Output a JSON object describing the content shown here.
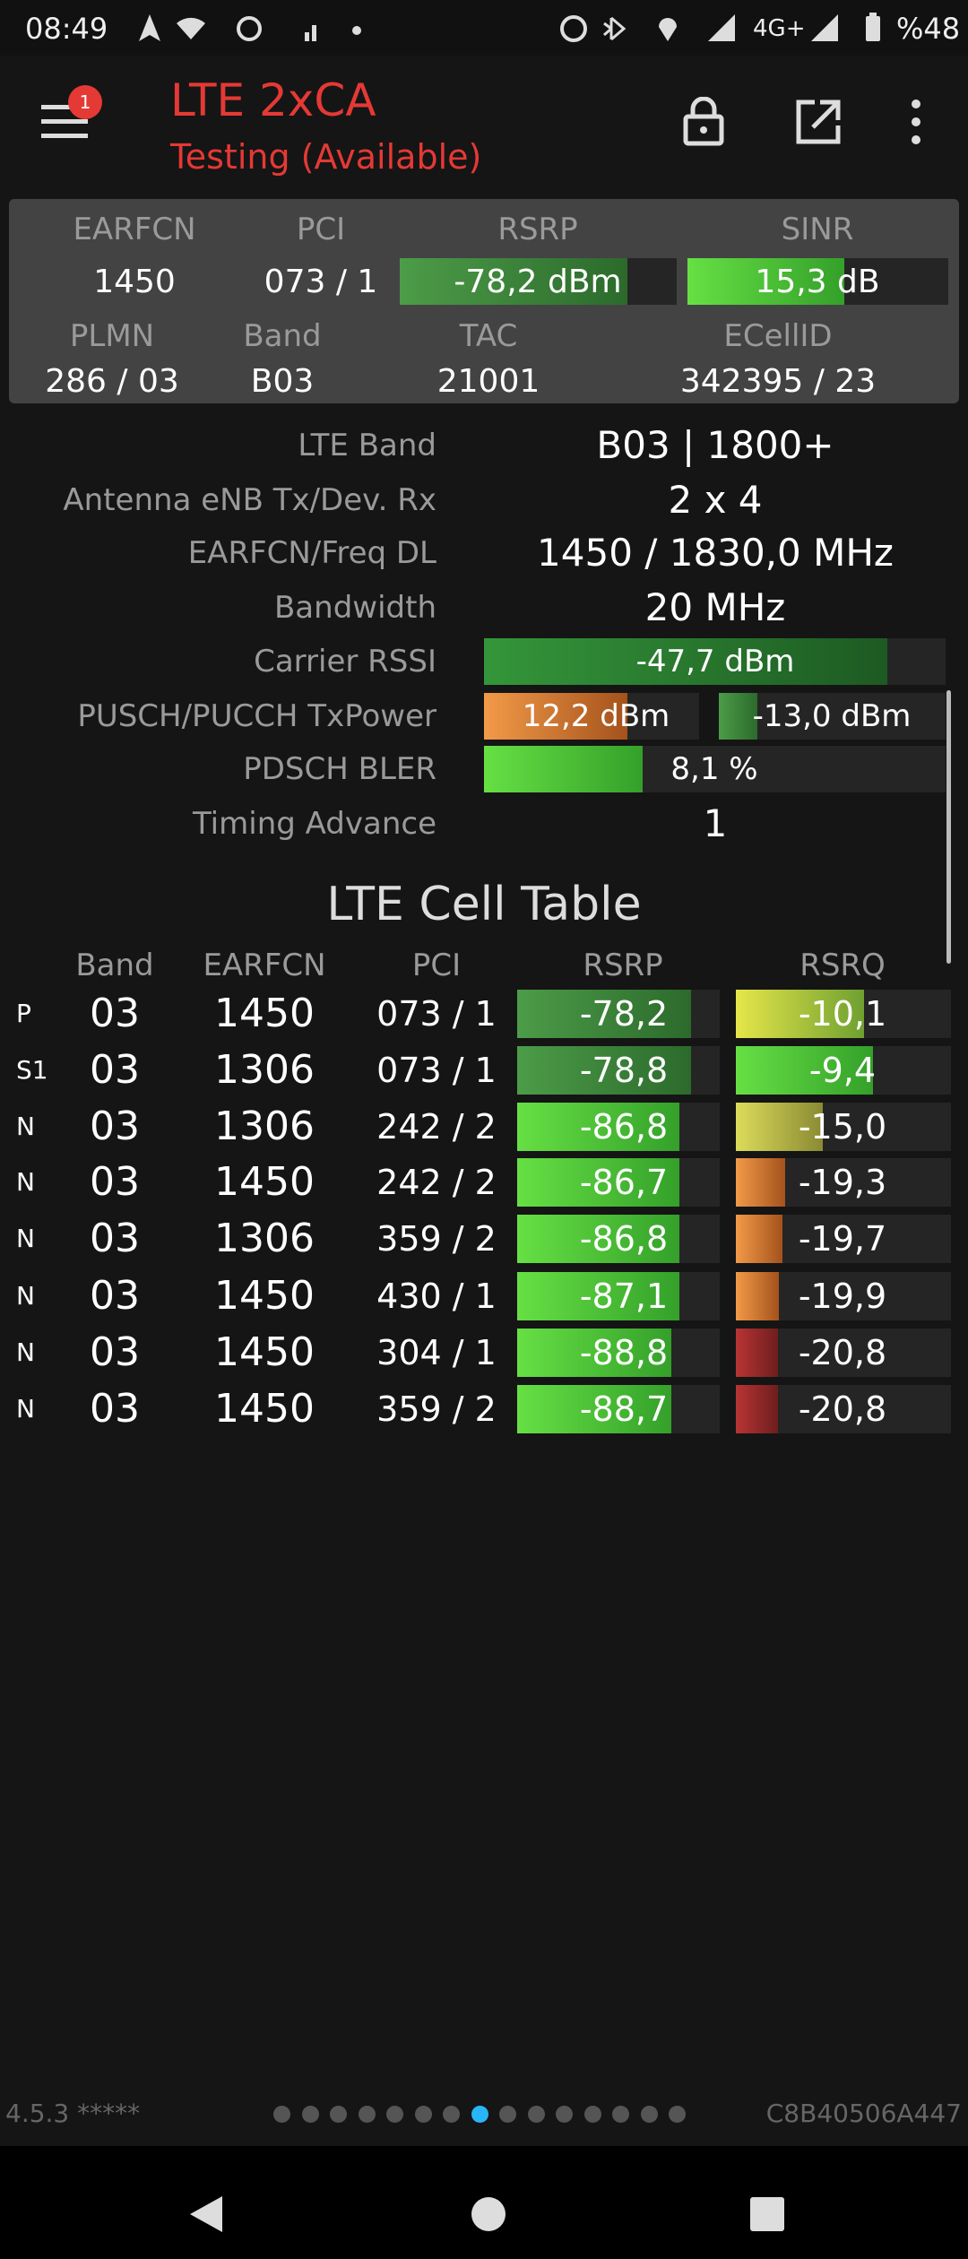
{
  "status_bar": {
    "time": "08:49",
    "network": "4G+",
    "battery": "%48"
  },
  "header": {
    "notification_count": "1",
    "title": "LTE 2xCA",
    "subtitle": "Testing (Available)"
  },
  "summary": {
    "labels": [
      "EARFCN",
      "PCI",
      "RSRP",
      "SINR"
    ],
    "values": [
      "1450",
      "073 / 1",
      "-78,2 dBm",
      "15,3 dB"
    ],
    "labels2": [
      "PLMN",
      "Band",
      "TAC",
      "ECellID"
    ],
    "values2": [
      "286 / 03",
      "B03",
      "21001",
      "342395 / 23"
    ]
  },
  "details": [
    {
      "label": "LTE Band",
      "value": "B03 | 1800+"
    },
    {
      "label": "Antenna eNB Tx/Dev. Rx",
      "value": "2 x 4"
    },
    {
      "label": "EARFCN/Freq DL",
      "value": "1450 / 1830,0 MHz"
    },
    {
      "label": "Bandwidth",
      "value": "20 MHz"
    },
    {
      "label": "Carrier RSSI",
      "value": "-47,7 dBm"
    },
    {
      "label": "PUSCH/PUCCH TxPower",
      "value": "12,2 dBm",
      "value2": "-13,0 dBm"
    },
    {
      "label": "PDSCH BLER",
      "value": "8,1 %"
    },
    {
      "label": "Timing Advance",
      "value": "1"
    }
  ],
  "cell_table": {
    "title": "LTE Cell Table",
    "columns": [
      "Band",
      "EARFCN",
      "PCI",
      "RSRP",
      "RSRQ"
    ],
    "rows": [
      [
        "P",
        "03",
        "1450",
        "073 / 1",
        "-78,2",
        "-10,1"
      ],
      [
        "S1",
        "03",
        "1306",
        "073 / 1",
        "-78,8",
        "-9,4"
      ],
      [
        "N",
        "03",
        "1306",
        "242 / 2",
        "-86,8",
        "-15,0"
      ],
      [
        "N",
        "03",
        "1450",
        "242 / 2",
        "-86,7",
        "-19,3"
      ],
      [
        "N",
        "03",
        "1306",
        "359 / 2",
        "-86,8",
        "-19,7"
      ],
      [
        "N",
        "03",
        "1450",
        "430 / 1",
        "-87,1",
        "-19,9"
      ],
      [
        "N",
        "03",
        "1450",
        "304 / 1",
        "-88,8",
        "-20,8"
      ],
      [
        "N",
        "03",
        "1450",
        "359 / 2",
        "-88,7",
        "-20,8"
      ]
    ]
  },
  "footer": {
    "version": "4.5.3 *****",
    "device_id": "C8B40506A447"
  }
}
